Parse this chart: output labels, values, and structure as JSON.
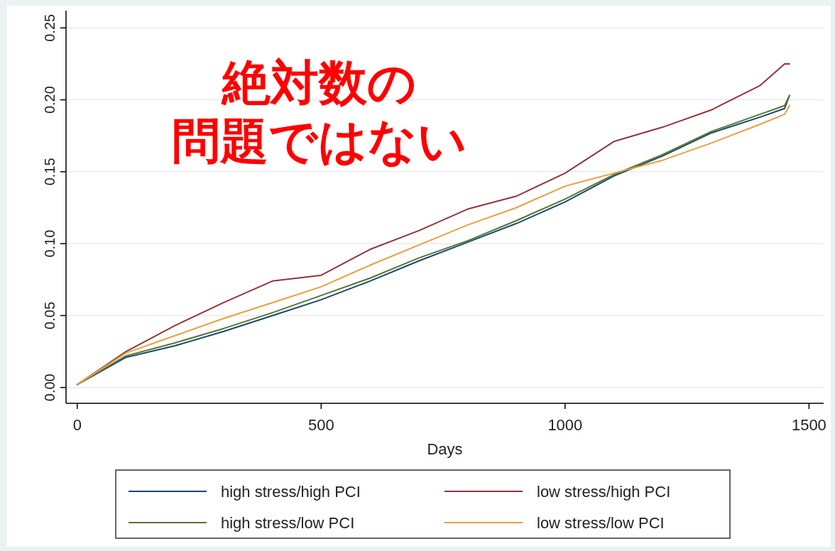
{
  "chart_data": {
    "type": "line",
    "xlabel": "Days",
    "annotations": [
      "絶対数の",
      "問題ではない"
    ],
    "x": [
      0,
      100,
      200,
      300,
      400,
      500,
      600,
      700,
      800,
      900,
      1000,
      1100,
      1200,
      1300,
      1400,
      1450,
      1460
    ],
    "series": [
      {
        "name": "high stress/high PCI",
        "color": "#1a476f",
        "values": [
          0.002,
          0.021,
          0.029,
          0.039,
          0.05,
          0.061,
          0.074,
          0.088,
          0.101,
          0.114,
          0.129,
          0.147,
          0.161,
          0.177,
          0.188,
          0.194,
          0.203
        ]
      },
      {
        "name": "low stress/high PCI",
        "color": "#90353b",
        "values": [
          0.002,
          0.025,
          0.043,
          0.059,
          0.074,
          0.078,
          0.096,
          0.109,
          0.124,
          0.133,
          0.149,
          0.171,
          0.181,
          0.193,
          0.21,
          0.225,
          0.225
        ]
      },
      {
        "name": "high stress/low PCI",
        "color": "#55752f",
        "values": [
          0.002,
          0.022,
          0.031,
          0.041,
          0.052,
          0.064,
          0.076,
          0.09,
          0.102,
          0.116,
          0.131,
          0.148,
          0.162,
          0.178,
          0.19,
          0.196,
          0.203
        ]
      },
      {
        "name": "low stress/low PCI",
        "color": "#e8a040",
        "values": [
          0.002,
          0.024,
          0.036,
          0.048,
          0.059,
          0.07,
          0.085,
          0.099,
          0.113,
          0.125,
          0.14,
          0.149,
          0.158,
          0.17,
          0.183,
          0.19,
          0.196
        ]
      }
    ],
    "xlim": [
      -23,
      1530
    ],
    "ylim": [
      -0.011,
      0.262
    ],
    "xticks": [
      0,
      500,
      1000,
      1500
    ],
    "yticks": [
      {
        "value": 0,
        "label": "0.00"
      },
      0.05,
      {
        "value": 0.1,
        "label": "0.10"
      },
      0.15,
      {
        "value": 0.2,
        "label": "0.20"
      },
      0.25
    ],
    "grid": "y",
    "legend": "bottom",
    "marker": "none",
    "line_style": "solid"
  }
}
